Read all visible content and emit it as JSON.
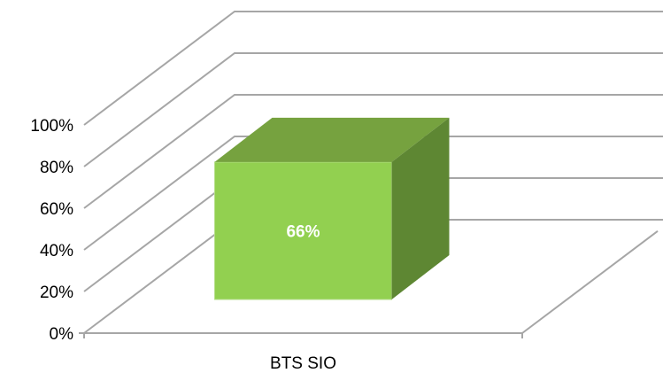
{
  "chart_data": {
    "type": "bar",
    "categories": [
      "BTS SIO"
    ],
    "series": [
      {
        "values": [
          66
        ],
        "data_labels": [
          "66%"
        ]
      }
    ],
    "y_ticks": [
      "0%",
      "20%",
      "40%",
      "60%",
      "80%",
      "100%"
    ],
    "ylim": [
      0,
      100
    ],
    "grid": true,
    "legend": "none",
    "style": "3d-column",
    "colors": {
      "front": "#92d050",
      "top": "#76a23f",
      "side": "#5e8733",
      "grid": "#a6a6a6"
    }
  }
}
